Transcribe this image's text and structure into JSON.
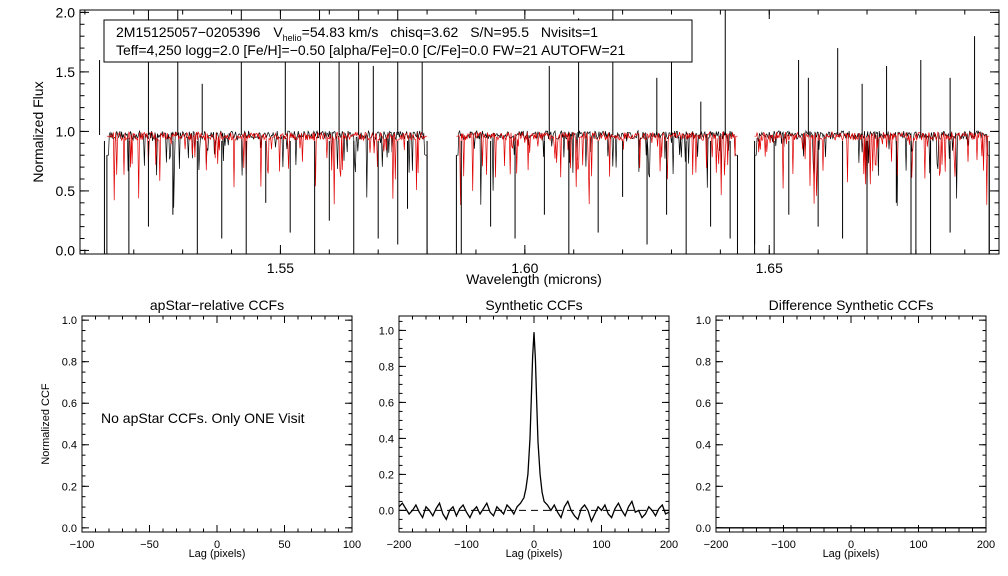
{
  "chart_data": [
    {
      "id": "spectrum",
      "type": "line",
      "title": "",
      "xlabel": "Wavelength (microns)",
      "ylabel": "Normalized Flux",
      "xlim": [
        1.509,
        1.697
      ],
      "ylim": [
        -0.03,
        2.02
      ],
      "xticks": [
        1.55,
        1.6,
        1.65
      ],
      "xtick_labels": [
        "1.55",
        "1.60",
        "1.65"
      ],
      "yticks": [
        0.0,
        0.5,
        1.0,
        1.5,
        2.0
      ],
      "ytick_labels": [
        "0.0",
        "0.5",
        "1.0",
        "1.5",
        "2.0"
      ],
      "info_line1": {
        "star_id": "2M15125057−0205396",
        "vhelio_prefix": "V",
        "vhelio_subscript": "helio",
        "vhelio_value": "=54.83 km/s",
        "chisq": "chisq=3.62",
        "snr": "S/N=95.5",
        "nvisits": "Nvisits=1"
      },
      "info_line2": "Teff=4,250 logg=2.0 [Fe/H]=−0.50 [alpha/Fe]=0.0 [C/Fe]=0.0 FW=21 AUTOFW=21",
      "chips": [
        [
          1.5145,
          1.58
        ],
        [
          1.586,
          1.6435
        ],
        [
          1.647,
          1.695
        ]
      ],
      "series": [
        {
          "name": "observed spectrum",
          "color": "#000000",
          "continuum": 0.97
        },
        {
          "name": "synthetic model",
          "color": "#e00000",
          "continuum": 0.96
        }
      ],
      "emission_spikes_x": [
        1.513,
        1.523,
        1.529,
        1.534,
        1.542,
        1.551,
        1.558,
        1.562,
        1.566,
        1.569,
        1.574,
        1.579,
        1.605,
        1.611,
        1.618,
        1.627,
        1.63,
        1.636,
        1.641,
        1.656,
        1.658,
        1.664,
        1.669,
        1.674,
        1.681,
        1.687,
        1.692
      ],
      "emission_spikes_y": [
        1.6,
        2.05,
        2.05,
        1.4,
        2.05,
        1.8,
        2.05,
        1.6,
        2.05,
        1.55,
        2.05,
        1.6,
        1.55,
        1.95,
        2.05,
        1.45,
        1.65,
        1.25,
        2.05,
        1.6,
        1.45,
        1.7,
        1.4,
        1.55,
        1.6,
        1.45,
        1.8
      ],
      "dropout_x": [
        1.514,
        1.519,
        1.523,
        1.528,
        1.533,
        1.538,
        1.543,
        1.547,
        1.552,
        1.557,
        1.56,
        1.565,
        1.57,
        1.574,
        1.576,
        1.58,
        1.587,
        1.593,
        1.598,
        1.604,
        1.609,
        1.615,
        1.62,
        1.625,
        1.629,
        1.633,
        1.638,
        1.642,
        1.647,
        1.651,
        1.654,
        1.66,
        1.665,
        1.67,
        1.676,
        1.679,
        1.68,
        1.683,
        1.687,
        1.695
      ],
      "dropout_y": [
        -0.03,
        -0.03,
        0.2,
        0.3,
        -0.03,
        0.1,
        -0.03,
        0.4,
        0.15,
        -0.03,
        0.25,
        -0.03,
        0.1,
        0.05,
        0.35,
        -0.03,
        -0.03,
        0.2,
        0.1,
        0.3,
        -0.03,
        0.15,
        0.45,
        0.05,
        0.3,
        -0.03,
        0.2,
        0.1,
        0.05,
        -0.03,
        0.3,
        0.2,
        0.1,
        -0.03,
        0.4,
        -0.03,
        -0.03,
        -0.03,
        0.15,
        -0.03
      ]
    },
    {
      "id": "apstar-ccf",
      "type": "line",
      "title": "apStar−relative CCFs",
      "xlabel": "Lag (pixels)",
      "ylabel": "Normalized CCF",
      "xlim": [
        -100,
        100
      ],
      "ylim": [
        -0.02,
        1.02
      ],
      "xticks": [
        -100,
        -50,
        0,
        50,
        100
      ],
      "xtick_labels": [
        "−100",
        "−50",
        "0",
        "50",
        "100"
      ],
      "yticks": [
        0.0,
        0.2,
        0.4,
        0.6,
        0.8,
        1.0
      ],
      "ytick_labels": [
        "0.0",
        "0.2",
        "0.4",
        "0.6",
        "0.8",
        "1.0"
      ],
      "annotation": "No apStar CCFs.  Only ONE Visit",
      "series": []
    },
    {
      "id": "synthetic-ccf",
      "type": "line",
      "title": "Synthetic CCFs",
      "xlabel": "Lag (pixels)",
      "ylabel": "",
      "xlim": [
        -200,
        200
      ],
      "ylim": [
        -0.12,
        1.08
      ],
      "xticks": [
        -200,
        -100,
        0,
        100,
        200
      ],
      "xtick_labels": [
        "−200",
        "−100",
        "0",
        "100",
        "200"
      ],
      "yticks": [
        0.0,
        0.2,
        0.4,
        0.6,
        0.8,
        1.0
      ],
      "ytick_labels": [
        "0.0",
        "0.2",
        "0.4",
        "0.6",
        "0.8",
        "1.0"
      ],
      "reference_line_y": 0.0,
      "series": [
        {
          "name": "synthetic CCF",
          "x": [
            -200,
            -195,
            -190,
            -185,
            -180,
            -175,
            -170,
            -165,
            -160,
            -155,
            -150,
            -145,
            -140,
            -135,
            -130,
            -125,
            -120,
            -115,
            -110,
            -105,
            -100,
            -95,
            -90,
            -85,
            -80,
            -75,
            -70,
            -65,
            -60,
            -55,
            -50,
            -45,
            -40,
            -35,
            -30,
            -25,
            -20,
            -15,
            -12,
            -9,
            -6,
            -4,
            -2,
            0,
            2,
            4,
            6,
            9,
            12,
            15,
            20,
            25,
            30,
            35,
            40,
            45,
            50,
            55,
            60,
            65,
            70,
            75,
            80,
            85,
            90,
            95,
            100,
            105,
            110,
            115,
            120,
            125,
            130,
            135,
            140,
            145,
            150,
            155,
            160,
            165,
            170,
            175,
            180,
            185,
            190,
            195,
            200
          ],
          "y": [
            0.02,
            0.04,
            0.01,
            -0.02,
            0.0,
            0.03,
            -0.01,
            -0.04,
            0.02,
            0.0,
            -0.03,
            0.01,
            0.04,
            -0.02,
            -0.05,
            0.0,
            0.02,
            -0.03,
            0.01,
            0.03,
            -0.01,
            -0.04,
            0.0,
            0.02,
            -0.02,
            0.01,
            0.04,
            -0.01,
            -0.03,
            0.02,
            0.0,
            -0.02,
            0.03,
            0.01,
            -0.02,
            0.02,
            0.04,
            0.07,
            0.12,
            0.2,
            0.4,
            0.62,
            0.85,
            0.99,
            0.84,
            0.6,
            0.38,
            0.2,
            0.1,
            0.05,
            0.03,
            0.0,
            0.03,
            -0.01,
            -0.04,
            0.02,
            0.05,
            0.0,
            -0.03,
            -0.05,
            0.01,
            0.03,
            0.0,
            -0.06,
            -0.02,
            0.02,
            0.0,
            0.03,
            -0.02,
            -0.04,
            0.01,
            0.04,
            0.0,
            -0.03,
            0.02,
            0.05,
            -0.01,
            0.0,
            -0.04,
            -0.02,
            0.02,
            0.0,
            -0.03,
            0.01,
            0.03,
            -0.02,
            -0.01
          ]
        }
      ]
    },
    {
      "id": "difference-ccf",
      "type": "line",
      "title": "Difference Synthetic CCFs",
      "xlabel": "Lag (pixels)",
      "ylabel": "",
      "xlim": [
        -200,
        200
      ],
      "ylim": [
        -0.02,
        1.02
      ],
      "xticks": [
        -200,
        -100,
        0,
        100,
        200
      ],
      "xtick_labels": [
        "−200",
        "−100",
        "0",
        "100",
        "200"
      ],
      "yticks": [
        0.0,
        0.2,
        0.4,
        0.6,
        0.8,
        1.0
      ],
      "ytick_labels": [
        "0.0",
        "0.2",
        "0.4",
        "0.6",
        "0.8",
        "1.0"
      ],
      "series": [
        {
          "name": "difference CCF",
          "x": [
            -200,
            200
          ],
          "y": [
            0.0,
            0.0
          ]
        }
      ]
    }
  ]
}
